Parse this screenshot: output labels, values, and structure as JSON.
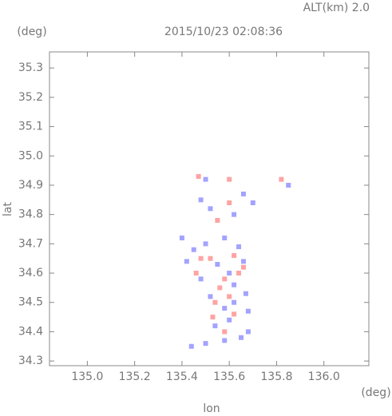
{
  "chart_data": {
    "type": "scatter",
    "title": "2015/10/23 02:08:36",
    "altitude_label": "ALT(km) 2.0",
    "x_label": "lon",
    "y_label": "lat",
    "x_unit": "(deg)",
    "y_unit": "(deg)",
    "xlim": [
      134.84,
      136.19
    ],
    "ylim": [
      34.284,
      35.355
    ],
    "xticks": [
      {
        "value": 135.0,
        "label": "135.0"
      },
      135.2,
      135.4,
      135.6,
      135.8,
      {
        "value": 136.0,
        "label": "136.0"
      }
    ],
    "yticks": [
      34.3,
      34.4,
      34.5,
      34.6,
      34.7,
      34.8,
      34.9,
      {
        "value": 35.0,
        "label": "35.0"
      },
      35.1,
      35.2,
      35.3
    ],
    "series": [
      {
        "color": "#8c8cff",
        "x": [
          135.5,
          135.48,
          135.52,
          135.66,
          135.7,
          135.85,
          135.62,
          135.4,
          135.45,
          135.5,
          135.58,
          135.64,
          135.42,
          135.55,
          135.66,
          135.6,
          135.48,
          135.62,
          135.52,
          135.67,
          135.58,
          135.68,
          135.6,
          135.54,
          135.68,
          135.65,
          135.58,
          135.44,
          135.5,
          135.62
        ],
        "values": [
          34.92,
          34.85,
          34.82,
          34.87,
          34.84,
          34.9,
          34.8,
          34.72,
          34.68,
          34.7,
          34.72,
          34.69,
          34.64,
          34.63,
          34.64,
          34.6,
          34.58,
          34.56,
          34.52,
          34.53,
          34.48,
          34.47,
          34.44,
          34.42,
          34.4,
          34.38,
          34.37,
          34.35,
          34.36,
          34.5
        ]
      },
      {
        "color": "#ff8c8c",
        "x": [
          135.47,
          135.6,
          135.82,
          135.6,
          135.55,
          135.48,
          135.52,
          135.62,
          135.46,
          135.58,
          135.64,
          135.56,
          135.6,
          135.54,
          135.62,
          135.58,
          135.53,
          135.66
        ],
        "values": [
          34.93,
          34.92,
          34.92,
          34.84,
          34.78,
          34.65,
          34.65,
          34.66,
          34.6,
          34.58,
          34.6,
          34.55,
          34.52,
          34.5,
          34.46,
          34.4,
          34.45,
          34.62
        ]
      }
    ]
  }
}
